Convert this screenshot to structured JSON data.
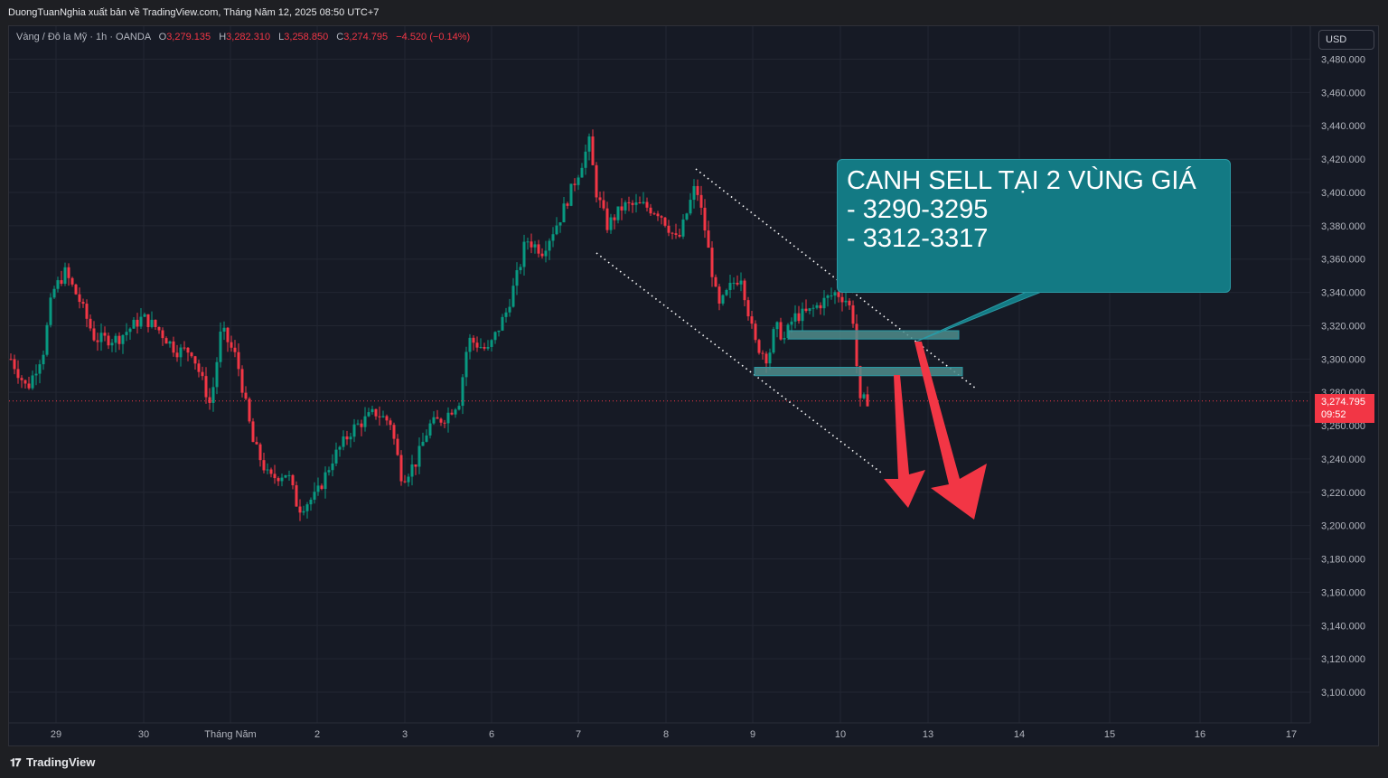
{
  "header": {
    "publisher": "DuongTuanNghia xuất bản về TradingView.com, Tháng Năm 12, 2025 08:50 UTC+7"
  },
  "symbol": {
    "name": "Vàng / Đô la Mỹ · 1h · OANDA",
    "o_label": "O",
    "o_value": "3,279.135",
    "h_label": "H",
    "h_value": "3,282.310",
    "l_label": "L",
    "l_value": "3,258.850",
    "c_label": "C",
    "c_value": "3,274.795",
    "change": "−4.520 (−0.14%)"
  },
  "currency": "USD",
  "current_price": {
    "value": "3,274.795",
    "countdown": "09:52"
  },
  "annotation": {
    "text": "CANH SELL TẠI 2 VÙNG GIÁ\n- 3290-3295\n- 3312-3317"
  },
  "footer": {
    "brand": "TradingView",
    "logo_icon": "tradingview-logo-icon"
  },
  "colors": {
    "up": "#089981",
    "down": "#f23645",
    "background": "#161a25",
    "note": "#137a84",
    "arrow": "#f23645"
  },
  "chart_data": {
    "type": "candlestick",
    "ylim": [
      3090,
      3490
    ],
    "y_ticks": [
      3480,
      3460,
      3440,
      3420,
      3400,
      3380,
      3360,
      3340,
      3320,
      3300,
      3280,
      3260,
      3240,
      3220,
      3200,
      3180,
      3160,
      3140,
      3120,
      3100
    ],
    "y_tick_labels": [
      "3,480.000",
      "3,460.000",
      "3,440.000",
      "3,420.000",
      "3,400.000",
      "3,380.000",
      "3,360.000",
      "3,340.000",
      "3,320.000",
      "3,300.000",
      "3,280.000",
      "3,260.000",
      "3,240.000",
      "3,220.000",
      "3,200.000",
      "3,180.000",
      "3,160.000",
      "3,140.000",
      "3,120.000",
      "3,100.000"
    ],
    "x_tick_labels": [
      "29",
      "30",
      "Tháng Năm",
      "2",
      "3",
      "6",
      "7",
      "8",
      "9",
      "10",
      "13",
      "14",
      "15",
      "16",
      "17"
    ],
    "last_price": 3274.795,
    "zones": [
      {
        "low": 3312,
        "high": 3317,
        "label": "3312-3317"
      },
      {
        "low": 3290,
        "high": 3295,
        "label": "3290-3295"
      }
    ],
    "key_points": [
      {
        "date": "28",
        "price": 3300
      },
      {
        "date": "29",
        "price": 3340
      },
      {
        "date": "30",
        "price": 3320
      },
      {
        "date": "Tháng Năm",
        "price": 3310
      },
      {
        "date": "2",
        "price": 3210
      },
      {
        "date": "3",
        "price": 3240
      },
      {
        "date": "6",
        "price": 3320
      },
      {
        "date": "7",
        "price": 3430
      },
      {
        "date": "8",
        "price": 3390
      },
      {
        "date": "9",
        "price": 3320
      },
      {
        "date": "10",
        "price": 3330
      }
    ]
  }
}
